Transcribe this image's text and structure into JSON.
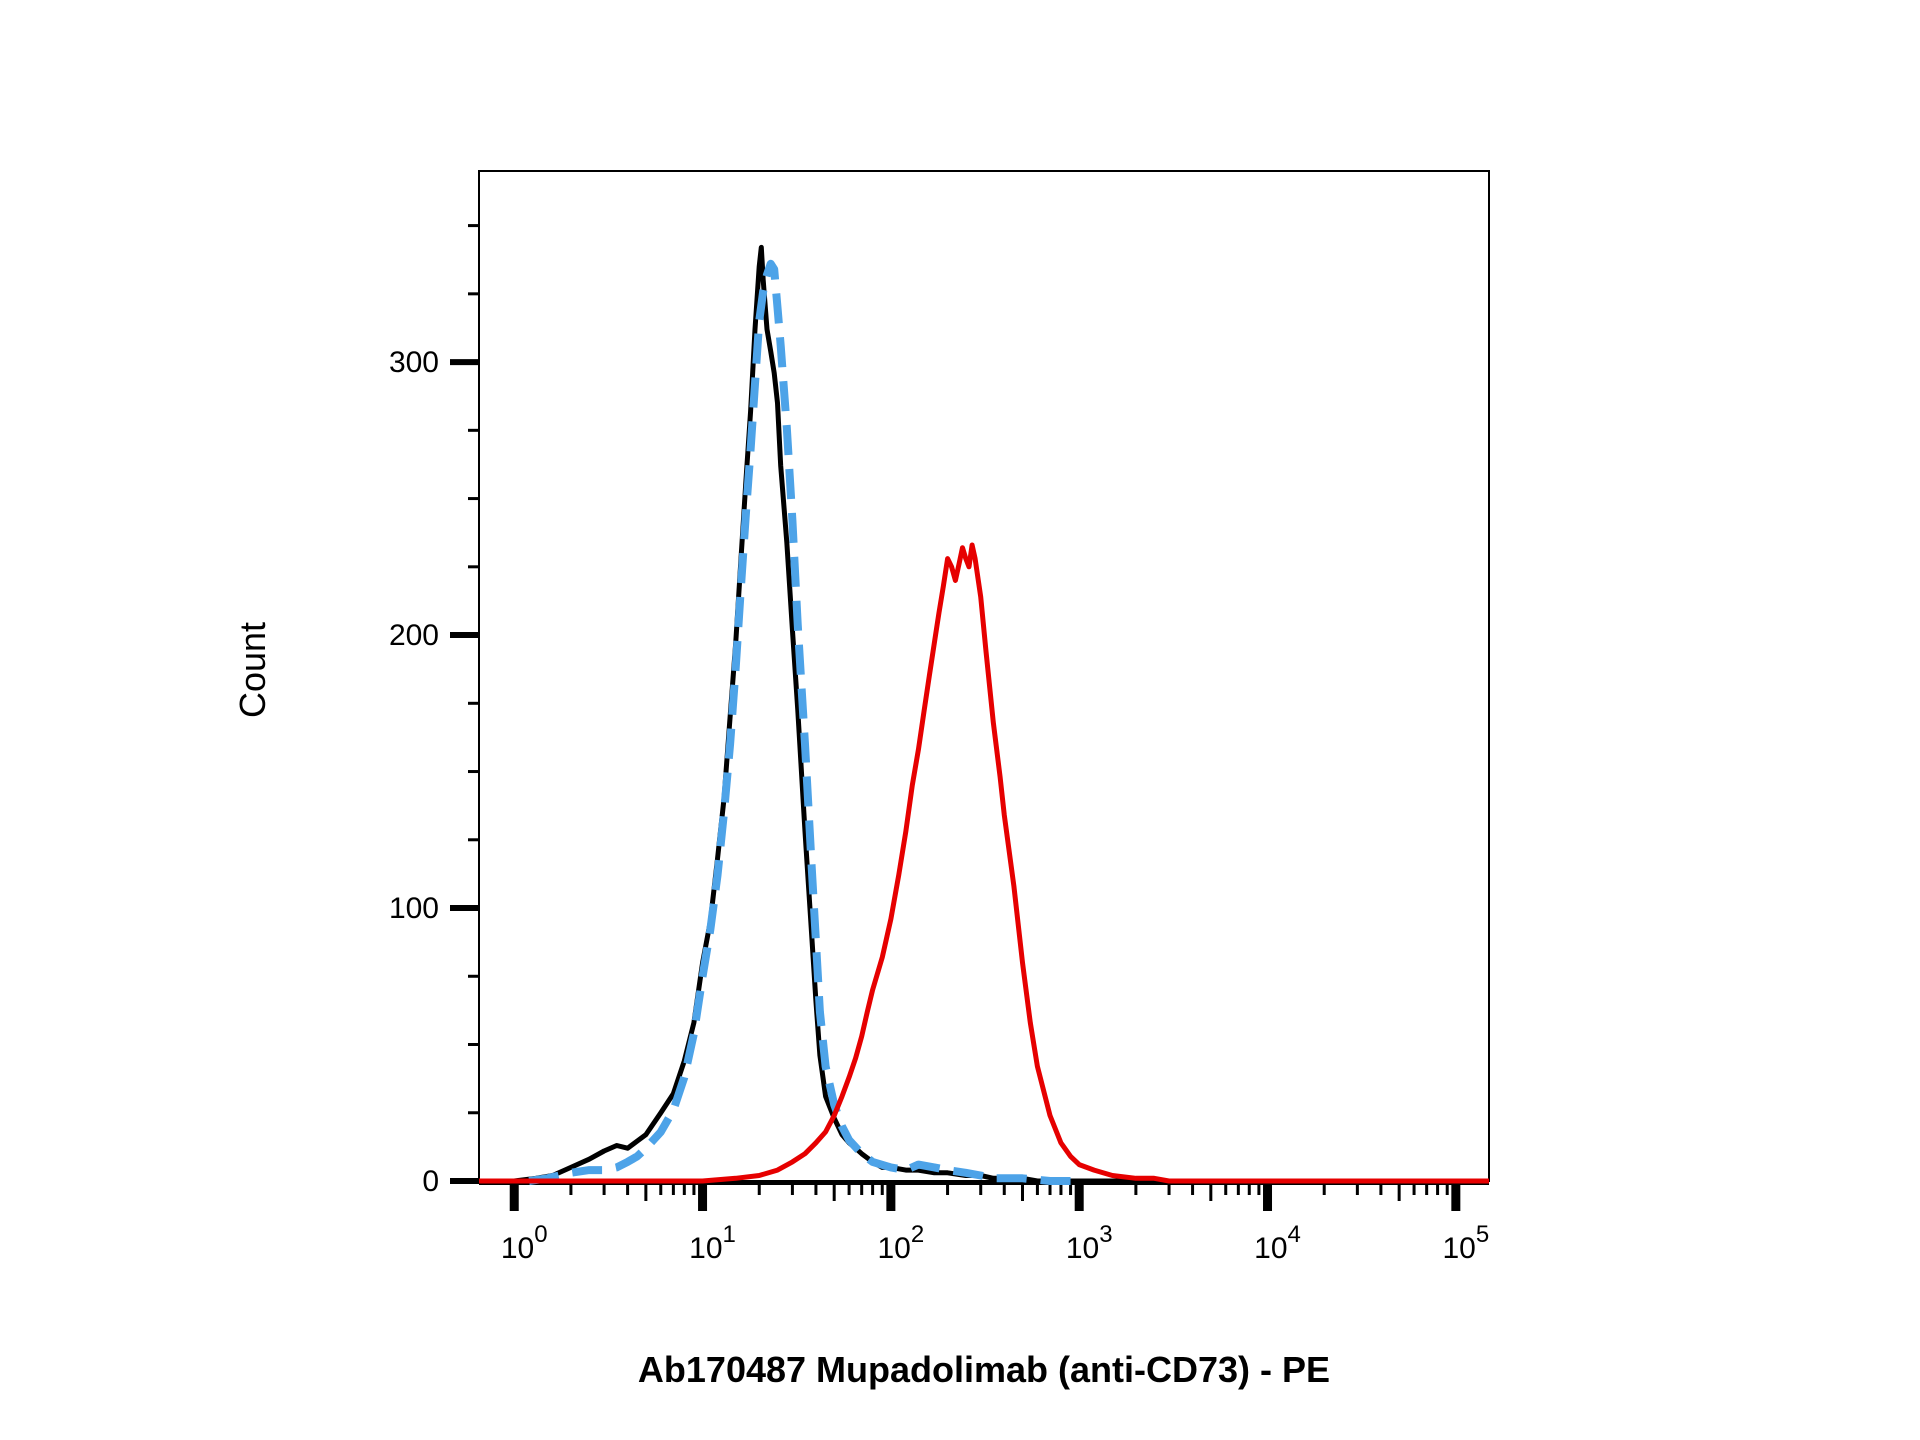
{
  "chart_data": {
    "type": "line",
    "title": "",
    "xlabel": "Ab170487 Mupadolimab (anti-CD73) - PE",
    "ylabel": "Count",
    "x_scale": "log",
    "xlim": [
      0.65,
      150000
    ],
    "ylim": [
      0,
      370
    ],
    "grid": false,
    "legend": "none",
    "y_ticks": [
      {
        "value": 0,
        "label": "0"
      },
      {
        "value": 100,
        "label": "100"
      },
      {
        "value": 200,
        "label": "200"
      },
      {
        "value": 300,
        "label": "300"
      }
    ],
    "x_ticks": [
      {
        "value": 1,
        "base": "10",
        "exp": "0"
      },
      {
        "value": 10,
        "base": "10",
        "exp": "1"
      },
      {
        "value": 100,
        "base": "10",
        "exp": "2"
      },
      {
        "value": 1000,
        "base": "10",
        "exp": "3"
      },
      {
        "value": 10000,
        "base": "10",
        "exp": "4"
      },
      {
        "value": 100000,
        "base": "10",
        "exp": "5"
      }
    ],
    "series": [
      {
        "color": "#000000",
        "style": "solid",
        "x": [
          0.65,
          1.0,
          1.3,
          1.6,
          2.0,
          2.5,
          3.0,
          3.5,
          4.0,
          5.0,
          6.0,
          7.0,
          8.0,
          9.0,
          10,
          11,
          12,
          13,
          14,
          15,
          16,
          17,
          18,
          19,
          20,
          20.5,
          21,
          22,
          23,
          24,
          25,
          26,
          28,
          30,
          32,
          35,
          38,
          40,
          42,
          45,
          50,
          55,
          60,
          65,
          70,
          80,
          90,
          100,
          120,
          140,
          170,
          200,
          250,
          300,
          350,
          400,
          500,
          600,
          800,
          1000,
          1500,
          150000
        ],
        "y": [
          0,
          0,
          1,
          2,
          5,
          8,
          11,
          13,
          12,
          17,
          25,
          32,
          44,
          58,
          80,
          95,
          118,
          140,
          170,
          197,
          228,
          257,
          282,
          312,
          335,
          342,
          330,
          312,
          304,
          296,
          285,
          262,
          234,
          202,
          173,
          128,
          90,
          66,
          46,
          31,
          23,
          17,
          14,
          12,
          10,
          7,
          5,
          5,
          4,
          4,
          3,
          3,
          2,
          2,
          1,
          1,
          1,
          0,
          0,
          0,
          0,
          0
        ]
      },
      {
        "color": "#4da3e8",
        "style": "dashed",
        "x": [
          1.2,
          1.5,
          2.0,
          2.5,
          3.0,
          3.5,
          4.0,
          4.5,
          5.0,
          6.0,
          7.0,
          8.0,
          9.0,
          10,
          11,
          12,
          13,
          14,
          15,
          16,
          17,
          18,
          19,
          20,
          21,
          22,
          23,
          24,
          25,
          26,
          28,
          30,
          32,
          35,
          38,
          40,
          42,
          45,
          50,
          55,
          60,
          70,
          80,
          100,
          120,
          140,
          170,
          200,
          250,
          300,
          350,
          500,
          700,
          1000
        ],
        "y": [
          0,
          1,
          3,
          4,
          4,
          5,
          7,
          9,
          12,
          18,
          26,
          38,
          54,
          75,
          92,
          112,
          135,
          160,
          188,
          218,
          245,
          268,
          292,
          315,
          326,
          332,
          336,
          334,
          320,
          306,
          276,
          242,
          204,
          160,
          115,
          88,
          62,
          42,
          28,
          20,
          15,
          10,
          7,
          5,
          4,
          6,
          5,
          4,
          3,
          2,
          1,
          1,
          0,
          0
        ]
      },
      {
        "color": "#e60000",
        "style": "solid",
        "x": [
          0.65,
          5.0,
          10,
          15,
          20,
          25,
          30,
          35,
          40,
          45,
          50,
          55,
          60,
          65,
          70,
          75,
          80,
          90,
          100,
          110,
          120,
          130,
          140,
          150,
          160,
          170,
          180,
          190,
          200,
          210,
          220,
          230,
          240,
          250,
          260,
          270,
          280,
          300,
          320,
          350,
          380,
          400,
          450,
          500,
          550,
          600,
          700,
          800,
          900,
          1000,
          1200,
          1500,
          2000,
          2500,
          3000,
          5000,
          10000,
          150000
        ],
        "y": [
          0,
          0,
          0,
          1,
          2,
          4,
          7,
          10,
          14,
          18,
          24,
          31,
          38,
          45,
          53,
          62,
          70,
          82,
          96,
          112,
          128,
          145,
          158,
          172,
          185,
          197,
          208,
          218,
          228,
          225,
          220,
          226,
          232,
          228,
          225,
          233,
          228,
          214,
          194,
          168,
          148,
          134,
          108,
          80,
          58,
          42,
          24,
          14,
          9,
          6,
          4,
          2,
          1,
          1,
          0,
          0,
          0,
          0
        ]
      }
    ]
  }
}
